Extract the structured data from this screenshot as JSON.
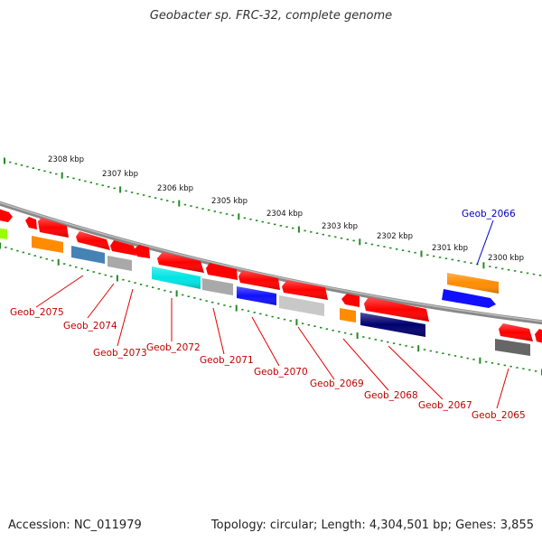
{
  "title": "Geobacter sp. FRC-32, complete genome",
  "footer": {
    "accession": "Accession: NC_011979",
    "summary": "Topology: circular; Length: 4,304,501 bp; Genes: 3,855"
  },
  "scale_ticks": [
    {
      "kbp": 2308,
      "label": "2308 kbp"
    },
    {
      "kbp": 2307,
      "label": "2307 kbp"
    },
    {
      "kbp": 2306,
      "label": "2306 kbp"
    },
    {
      "kbp": 2305,
      "label": "2305 kbp"
    },
    {
      "kbp": 2304,
      "label": "2304 kbp"
    },
    {
      "kbp": 2303,
      "label": "2303 kbp"
    },
    {
      "kbp": 2302,
      "label": "2302 kbp"
    },
    {
      "kbp": 2301,
      "label": "2301 kbp"
    },
    {
      "kbp": 2300,
      "label": "2300 kbp"
    }
  ],
  "genes": [
    {
      "name": "Geob_2075",
      "color": "#c00000",
      "highlight": false
    },
    {
      "name": "Geob_2074",
      "color": "#c00000",
      "highlight": false
    },
    {
      "name": "Geob_2073",
      "color": "#c00000",
      "highlight": false
    },
    {
      "name": "Geob_2072",
      "color": "#c00000",
      "highlight": false
    },
    {
      "name": "Geob_2071",
      "color": "#c00000",
      "highlight": false
    },
    {
      "name": "Geob_2070",
      "color": "#c00000",
      "highlight": false
    },
    {
      "name": "Geob_2069",
      "color": "#c00000",
      "highlight": false
    },
    {
      "name": "Geob_2068",
      "color": "#c00000",
      "highlight": false
    },
    {
      "name": "Geob_2067",
      "color": "#c00000",
      "highlight": false
    },
    {
      "name": "Geob_2066",
      "color": "#0000c0",
      "highlight": true
    },
    {
      "name": "Geob_2065",
      "color": "#c00000",
      "highlight": false
    }
  ],
  "feature_colors": {
    "red": "#ff0000",
    "orange": "#ff8c00",
    "blue": "#1010ff",
    "cyan": "#00e5e5",
    "steel": "#4682b4",
    "silver": "#a9a9a9",
    "navy": "#000070",
    "dim": "#666666",
    "lime": "#99ff00",
    "backbone": "#888888",
    "tick": "#228b22"
  }
}
